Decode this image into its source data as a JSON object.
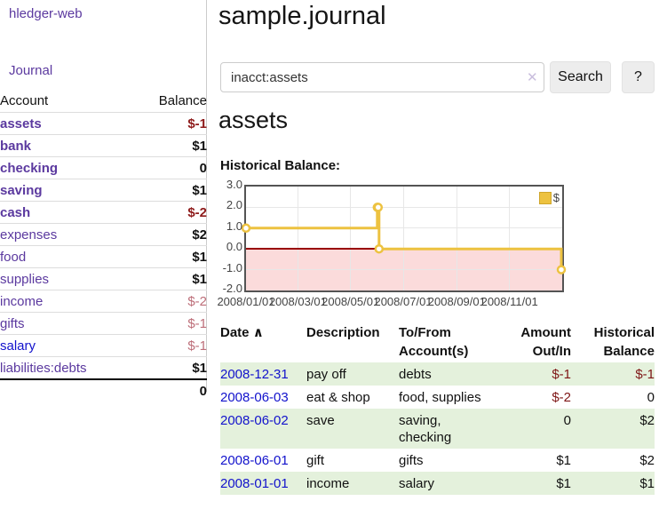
{
  "app": {
    "brand": "hledger-web",
    "nav": {
      "journal": "Journal"
    }
  },
  "sidebar": {
    "table": {
      "header": {
        "account": "Account",
        "balance": "Balance"
      },
      "rows": [
        {
          "name": "assets",
          "balance": "$-1",
          "depth": 1,
          "bold": true,
          "negative": "dark",
          "name_color": "purple"
        },
        {
          "name": "bank",
          "balance": "$1",
          "depth": 2,
          "bold": true,
          "negative": null,
          "name_color": "purple"
        },
        {
          "name": "checking",
          "balance": "0",
          "depth": 3,
          "bold": true,
          "negative": null,
          "name_color": "purple"
        },
        {
          "name": "saving",
          "balance": "$1",
          "depth": 3,
          "bold": true,
          "negative": null,
          "name_color": "purple"
        },
        {
          "name": "cash",
          "balance": "$-2",
          "depth": 2,
          "bold": true,
          "negative": "dark",
          "name_color": "purple"
        },
        {
          "name": "expenses",
          "balance": "$2",
          "depth": 1,
          "bold": false,
          "negative": null,
          "name_color": "purple"
        },
        {
          "name": "food",
          "balance": "$1",
          "depth": 2,
          "bold": false,
          "negative": null,
          "name_color": "purple"
        },
        {
          "name": "supplies",
          "balance": "$1",
          "depth": 2,
          "bold": false,
          "negative": null,
          "name_color": "purple"
        },
        {
          "name": "income",
          "balance": "$-2",
          "depth": 1,
          "bold": false,
          "negative": "light",
          "name_color": "purple"
        },
        {
          "name": "gifts",
          "balance": "$-1",
          "depth": 2,
          "bold": false,
          "negative": "light",
          "name_color": "purple"
        },
        {
          "name": "salary",
          "balance": "$-1",
          "depth": 2,
          "bold": false,
          "negative": "light",
          "name_color": "blue"
        },
        {
          "name": "liabilities:debts",
          "balance": "$1",
          "depth": 1,
          "bold": false,
          "negative": null,
          "name_color": "purple"
        }
      ],
      "total": "0"
    }
  },
  "main": {
    "title": "sample.journal",
    "search": {
      "value": "inacct:assets",
      "clear_icon": "✕",
      "search_label": "Search",
      "help_label": "?"
    },
    "heading": "assets",
    "chart_label": "Historical Balance:",
    "register": {
      "headers": {
        "date": "Date",
        "description": "Description",
        "accounts": "To/From Account(s)",
        "amount": "Amount Out/In",
        "balance": "Historical Balance"
      },
      "sort_icon": "∧",
      "rows": [
        {
          "date": "2008-12-31",
          "description": "pay off",
          "accounts": "debts",
          "amount": "$-1",
          "amount_negative": true,
          "balance": "$-1",
          "balance_negative": true,
          "stripe": true
        },
        {
          "date": "2008-06-03",
          "description": "eat & shop",
          "accounts": "food, supplies",
          "amount": "$-2",
          "amount_negative": true,
          "balance": "0",
          "balance_negative": false,
          "stripe": false
        },
        {
          "date": "2008-06-02",
          "description": "save",
          "accounts": "saving, checking",
          "amount": "0",
          "amount_negative": false,
          "balance": "$2",
          "balance_negative": false,
          "stripe": true
        },
        {
          "date": "2008-06-01",
          "description": "gift",
          "accounts": "gifts",
          "amount": "$1",
          "amount_negative": false,
          "balance": "$2",
          "balance_negative": false,
          "stripe": false
        },
        {
          "date": "2008-01-01",
          "description": "income",
          "accounts": "salary",
          "amount": "$1",
          "amount_negative": false,
          "balance": "$1",
          "balance_negative": false,
          "stripe": true
        }
      ]
    }
  },
  "chart_data": {
    "type": "line",
    "title": "Historical Balance",
    "step": true,
    "series": [
      {
        "name": "$",
        "points": [
          [
            "2008-01-01",
            1
          ],
          [
            "2008-06-01",
            2
          ],
          [
            "2008-06-02",
            2
          ],
          [
            "2008-06-03",
            0
          ],
          [
            "2008-12-31",
            -1
          ]
        ]
      }
    ],
    "xmin": "2008-01-01",
    "xmax": "2009-01-01",
    "ylim": [
      -2,
      3
    ],
    "y_ticks": [
      3.0,
      2.0,
      1.0,
      0.0,
      -1.0,
      -2.0
    ],
    "x_ticks": [
      {
        "date": "2008-01-01",
        "label": "2008/01/01"
      },
      {
        "date": "2008-03-01",
        "label": "2008/03/01"
      },
      {
        "date": "2008-05-01",
        "label": "2008/05/01"
      },
      {
        "date": "2008-07-01",
        "label": "2008/07/01"
      },
      {
        "date": "2008-09-01",
        "label": "2008/09/01"
      },
      {
        "date": "2008-11-01",
        "label": "2008/11/01"
      }
    ],
    "grid": true,
    "legend": {
      "label": "$",
      "position": "top-right"
    },
    "line_color": "#EDC240",
    "marker_fill": "#ffffff",
    "zero_line_color": "#990000",
    "negative_region_color": "#fbdbdb"
  }
}
